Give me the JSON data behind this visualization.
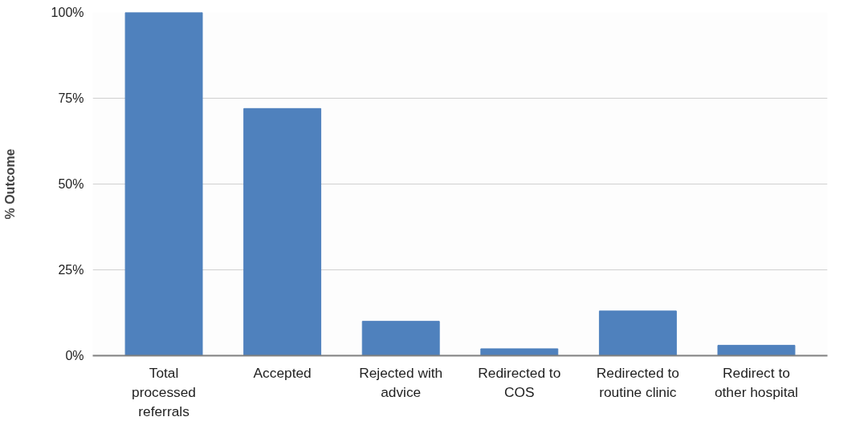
{
  "chart_data": {
    "type": "bar",
    "ylabel": "% Outcome",
    "categories": [
      "Total processed referrals",
      "Accepted",
      "Rejected with advice",
      "Redirected to COS",
      "Redirected to routine clinic",
      "Redirect to other hospital"
    ],
    "values": [
      100,
      72,
      10,
      2,
      13,
      3
    ],
    "color": "#4f81bd",
    "ylim": [
      0,
      100
    ],
    "yticks": [
      {
        "value": 0,
        "label": "0%"
      },
      {
        "value": 25,
        "label": "25%"
      },
      {
        "value": 50,
        "label": "50%"
      },
      {
        "value": 75,
        "label": "75%"
      },
      {
        "value": 100,
        "label": "100%"
      }
    ],
    "grid": "y"
  }
}
